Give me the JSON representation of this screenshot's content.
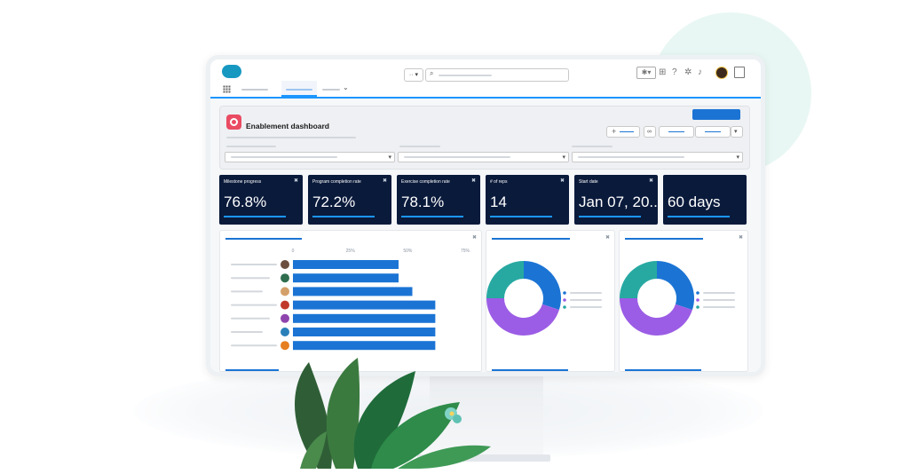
{
  "header": {
    "search_scope": "··",
    "icons": [
      "cloud-logo",
      "search-icon",
      "add-icon",
      "plus-square-icon",
      "help-icon",
      "gear-icon",
      "bell-icon",
      "avatar",
      "panel-icon"
    ]
  },
  "dashboard": {
    "title": "Enablement dashboard"
  },
  "kpis": [
    {
      "label": "Milestone progress",
      "value": "76.8%"
    },
    {
      "label": "Program completion rate",
      "value": "72.2%"
    },
    {
      "label": "Exercise completion rate",
      "value": "78.1%"
    },
    {
      "label": "# of reps",
      "value": "14"
    },
    {
      "label": "Start date",
      "value": "Jan 07, 20.."
    },
    {
      "label": "",
      "value": "60 days"
    }
  ],
  "colors": {
    "kpi_bg": "#0a1a3b",
    "accent_blue": "#1b74d4",
    "donut_blue": "#1b74d4",
    "donut_teal": "#27a9a2",
    "donut_purple": "#9b5de5",
    "brand_red": "#ea4b63"
  },
  "chart_data": [
    {
      "type": "bar",
      "orientation": "horizontal",
      "x_ticks": [
        "0",
        "25%",
        "50%",
        "75%"
      ],
      "xlim": [
        0,
        75
      ],
      "categories": [
        "",
        "",
        "",
        "",
        "",
        "",
        ""
      ],
      "values": [
        46,
        46,
        52,
        62,
        62,
        62,
        62
      ]
    },
    {
      "type": "pie",
      "style": "donut",
      "slices": [
        {
          "color": "#1b74d4",
          "value": 30
        },
        {
          "color": "#9b5de5",
          "value": 45
        },
        {
          "color": "#27a9a2",
          "value": 25
        }
      ]
    },
    {
      "type": "pie",
      "style": "donut",
      "slices": [
        {
          "color": "#1b74d4",
          "value": 30
        },
        {
          "color": "#9b5de5",
          "value": 45
        },
        {
          "color": "#27a9a2",
          "value": 25
        }
      ]
    }
  ]
}
